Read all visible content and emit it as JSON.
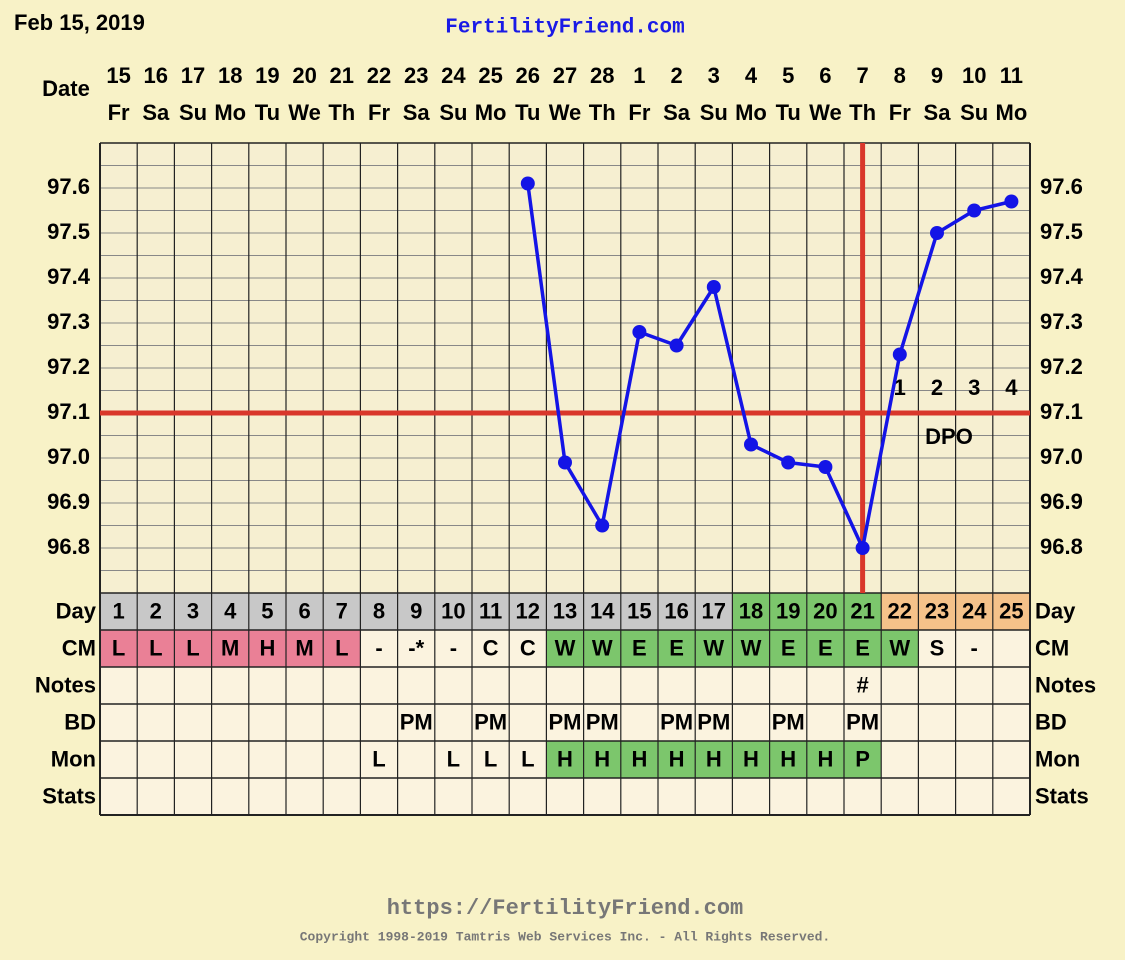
{
  "header": {
    "date": "Feb 15, 2019",
    "site": "FertilityFriend.com"
  },
  "chart_data": {
    "type": "line",
    "x_label": "Date",
    "dates": [
      "15",
      "16",
      "17",
      "18",
      "19",
      "20",
      "21",
      "22",
      "23",
      "24",
      "25",
      "26",
      "27",
      "28",
      "1",
      "2",
      "3",
      "4",
      "5",
      "6",
      "7",
      "8",
      "9",
      "10",
      "11"
    ],
    "weekdays": [
      "Fr",
      "Sa",
      "Su",
      "Mo",
      "Tu",
      "We",
      "Th",
      "Fr",
      "Sa",
      "Su",
      "Mo",
      "Tu",
      "We",
      "Th",
      "Fr",
      "Sa",
      "Su",
      "Mo",
      "Tu",
      "We",
      "Th",
      "Fr",
      "Sa",
      "Su",
      "Mo"
    ],
    "series": [
      {
        "color": "#1414e6",
        "values": [
          null,
          null,
          null,
          null,
          null,
          null,
          null,
          null,
          null,
          null,
          null,
          97.61,
          96.99,
          96.85,
          97.28,
          97.25,
          97.38,
          97.03,
          96.99,
          96.98,
          96.8,
          97.23,
          97.5,
          97.55,
          97.57
        ]
      }
    ],
    "ylim": [
      96.7,
      97.7
    ],
    "yticks": [
      {
        "value": 96.8,
        "label": "96.8"
      },
      96.9,
      {
        "value": 97.0,
        "label": "97.0"
      },
      97.1,
      97.2,
      97.3,
      97.4,
      97.5,
      97.6
    ],
    "minor_yticks": [
      96.75,
      96.85,
      96.95,
      97.05,
      97.15,
      97.25,
      97.35,
      97.45,
      97.55,
      97.65
    ],
    "grid": true,
    "coverline": {
      "value": 97.1,
      "color": "#d9372b"
    },
    "ovulation_day": 21,
    "dpo": {
      "label": "DPO",
      "values": [
        1,
        2,
        3,
        4
      ]
    },
    "rows": [
      {
        "label": "Day",
        "cells": [
          1,
          2,
          3,
          4,
          5,
          6,
          7,
          8,
          9,
          10,
          11,
          12,
          13,
          14,
          15,
          16,
          17,
          18,
          19,
          20,
          21,
          22,
          23,
          24,
          25
        ],
        "colors": [
          "#c8c8c8",
          "#c8c8c8",
          "#c8c8c8",
          "#c8c8c8",
          "#c8c8c8",
          "#c8c8c8",
          "#c8c8c8",
          "#c8c8c8",
          "#c8c8c8",
          "#c8c8c8",
          "#c8c8c8",
          "#c8c8c8",
          "#c8c8c8",
          "#c8c8c8",
          "#c8c8c8",
          "#c8c8c8",
          "#c8c8c8",
          "#7cc66c",
          "#7cc66c",
          "#7cc66c",
          "#7cc66c",
          "#f5c28a",
          "#f5c28a",
          "#f5c28a",
          "#f5c28a"
        ]
      },
      {
        "label": "CM",
        "cells": [
          "L",
          "L",
          "L",
          "M",
          "H",
          "M",
          "L",
          "-",
          "-*",
          "-",
          "C",
          "C",
          "W",
          "W",
          "E",
          "E",
          "W",
          "W",
          "E",
          "E",
          "E",
          "W",
          "S",
          "-",
          null
        ],
        "colors": [
          "#ea8096",
          "#ea8096",
          "#ea8096",
          "#ea8096",
          "#ea8096",
          "#ea8096",
          "#ea8096",
          null,
          null,
          null,
          null,
          null,
          "#7cc66c",
          "#7cc66c",
          "#7cc66c",
          "#7cc66c",
          "#7cc66c",
          "#7cc66c",
          "#7cc66c",
          "#7cc66c",
          "#7cc66c",
          "#7cc66c",
          null,
          null,
          null
        ]
      },
      {
        "label": "Notes",
        "cells": [
          null,
          null,
          null,
          null,
          null,
          null,
          null,
          null,
          null,
          null,
          null,
          null,
          null,
          null,
          null,
          null,
          null,
          null,
          null,
          null,
          "#",
          null,
          null,
          null,
          null
        ]
      },
      {
        "label": "BD",
        "cells": [
          null,
          null,
          null,
          null,
          null,
          null,
          null,
          null,
          "PM",
          null,
          "PM",
          null,
          "PM",
          "PM",
          null,
          "PM",
          "PM",
          null,
          "PM",
          null,
          "PM",
          null,
          null,
          null,
          null
        ]
      },
      {
        "label": "Mon",
        "cells": [
          null,
          null,
          null,
          null,
          null,
          null,
          null,
          "L",
          null,
          "L",
          "L",
          "L",
          "H",
          "H",
          "H",
          "H",
          "H",
          "H",
          "H",
          "H",
          "P",
          null,
          null,
          null,
          null
        ],
        "colors": [
          null,
          null,
          null,
          null,
          null,
          null,
          null,
          null,
          null,
          null,
          null,
          null,
          "#7cc66c",
          "#7cc66c",
          "#7cc66c",
          "#7cc66c",
          "#7cc66c",
          "#7cc66c",
          "#7cc66c",
          "#7cc66c",
          "#7cc66c",
          null,
          null,
          null,
          null
        ]
      },
      {
        "label": "Stats",
        "cells": [
          null,
          null,
          null,
          null,
          null,
          null,
          null,
          null,
          null,
          null,
          null,
          null,
          null,
          null,
          null,
          null,
          null,
          null,
          null,
          null,
          null,
          null,
          null,
          null,
          null
        ]
      }
    ]
  },
  "footer": {
    "url": "https://FertilityFriend.com",
    "copyright": "Copyright 1998-2019 Tamtris Web Services Inc. - All Rights Reserved."
  }
}
